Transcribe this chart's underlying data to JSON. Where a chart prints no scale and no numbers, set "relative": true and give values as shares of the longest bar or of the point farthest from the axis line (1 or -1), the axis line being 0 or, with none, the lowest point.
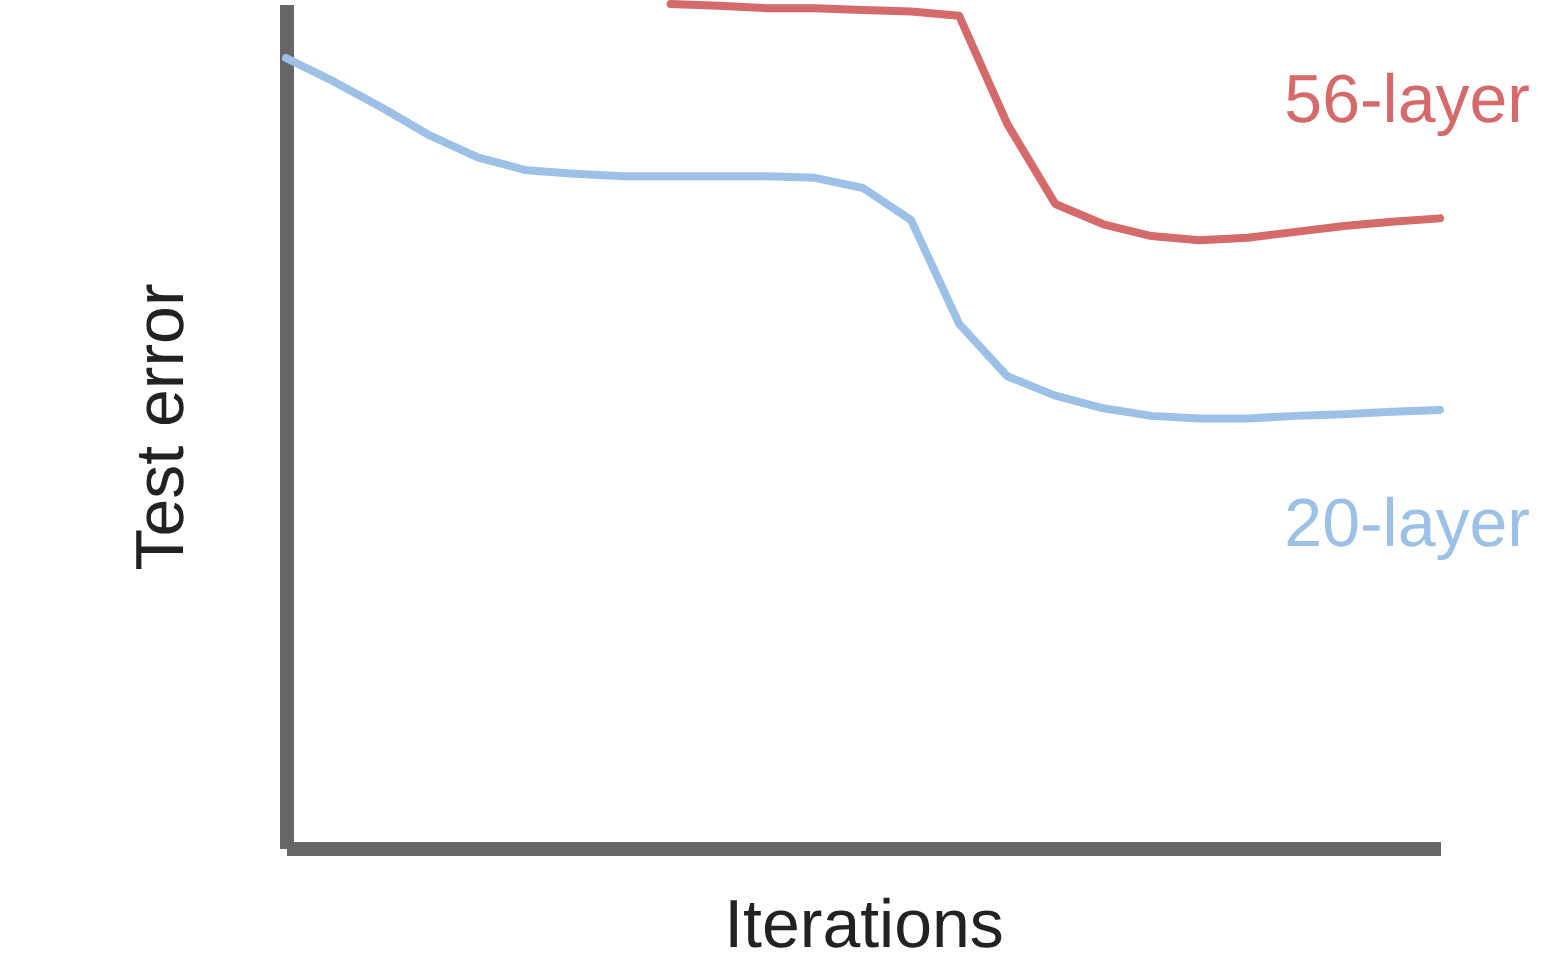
{
  "chart_data": {
    "type": "line",
    "relative": true,
    "xlabel": "Iterations",
    "ylabel": "Test error",
    "tick_labels": false,
    "grid": false,
    "line_style": "solid",
    "categories": [
      null,
      null,
      null,
      null,
      null,
      null,
      null,
      null,
      null,
      null,
      null,
      null,
      null,
      null,
      null,
      null,
      null,
      null,
      null,
      null,
      null,
      null,
      null,
      null,
      null
    ],
    "series": [
      {
        "name": "56-layer",
        "color": "#d46a6a",
        "values": [
          null,
          null,
          null,
          null,
          null,
          null,
          null,
          null,
          1,
          0.998,
          0.995,
          0.995,
          0.993,
          0.991,
          0.986,
          0.858,
          0.763,
          0.739,
          0.725,
          0.72,
          0.723,
          0.73,
          0.737,
          0.742,
          0.746
        ]
      },
      {
        "name": "20-layer",
        "color": "#9dc0e6",
        "values": [
          0.936,
          0.908,
          0.877,
          0.844,
          0.818,
          0.803,
          0.799,
          0.796,
          0.796,
          0.796,
          0.796,
          0.794,
          0.782,
          0.744,
          0.621,
          0.559,
          0.536,
          0.521,
          0.512,
          0.509,
          0.509,
          0.512,
          0.514,
          0.517,
          0.519
        ]
      }
    ]
  }
}
